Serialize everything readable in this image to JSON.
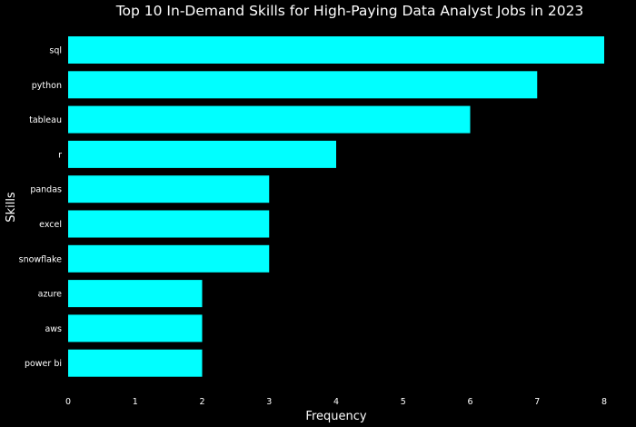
{
  "chart_data": {
    "type": "bar",
    "orientation": "horizontal",
    "title": "Top 10 In-Demand Skills for High-Paying Data Analyst Jobs in 2023",
    "xlabel": "Frequency",
    "ylabel": "Skills",
    "categories": [
      "sql",
      "python",
      "tableau",
      "r",
      "pandas",
      "excel",
      "snowflake",
      "azure",
      "aws",
      "power bi"
    ],
    "values": [
      8,
      7,
      6,
      4,
      3,
      3,
      3,
      2,
      2,
      2
    ],
    "xticks": [
      "0",
      "1",
      "2",
      "3",
      "4",
      "5",
      "6",
      "7",
      "8"
    ],
    "xlim": [
      0,
      8
    ],
    "grid": false,
    "legend": "none",
    "colors": {
      "background": "#000000",
      "bar": "#00ffff",
      "text": "#ffffff"
    }
  }
}
